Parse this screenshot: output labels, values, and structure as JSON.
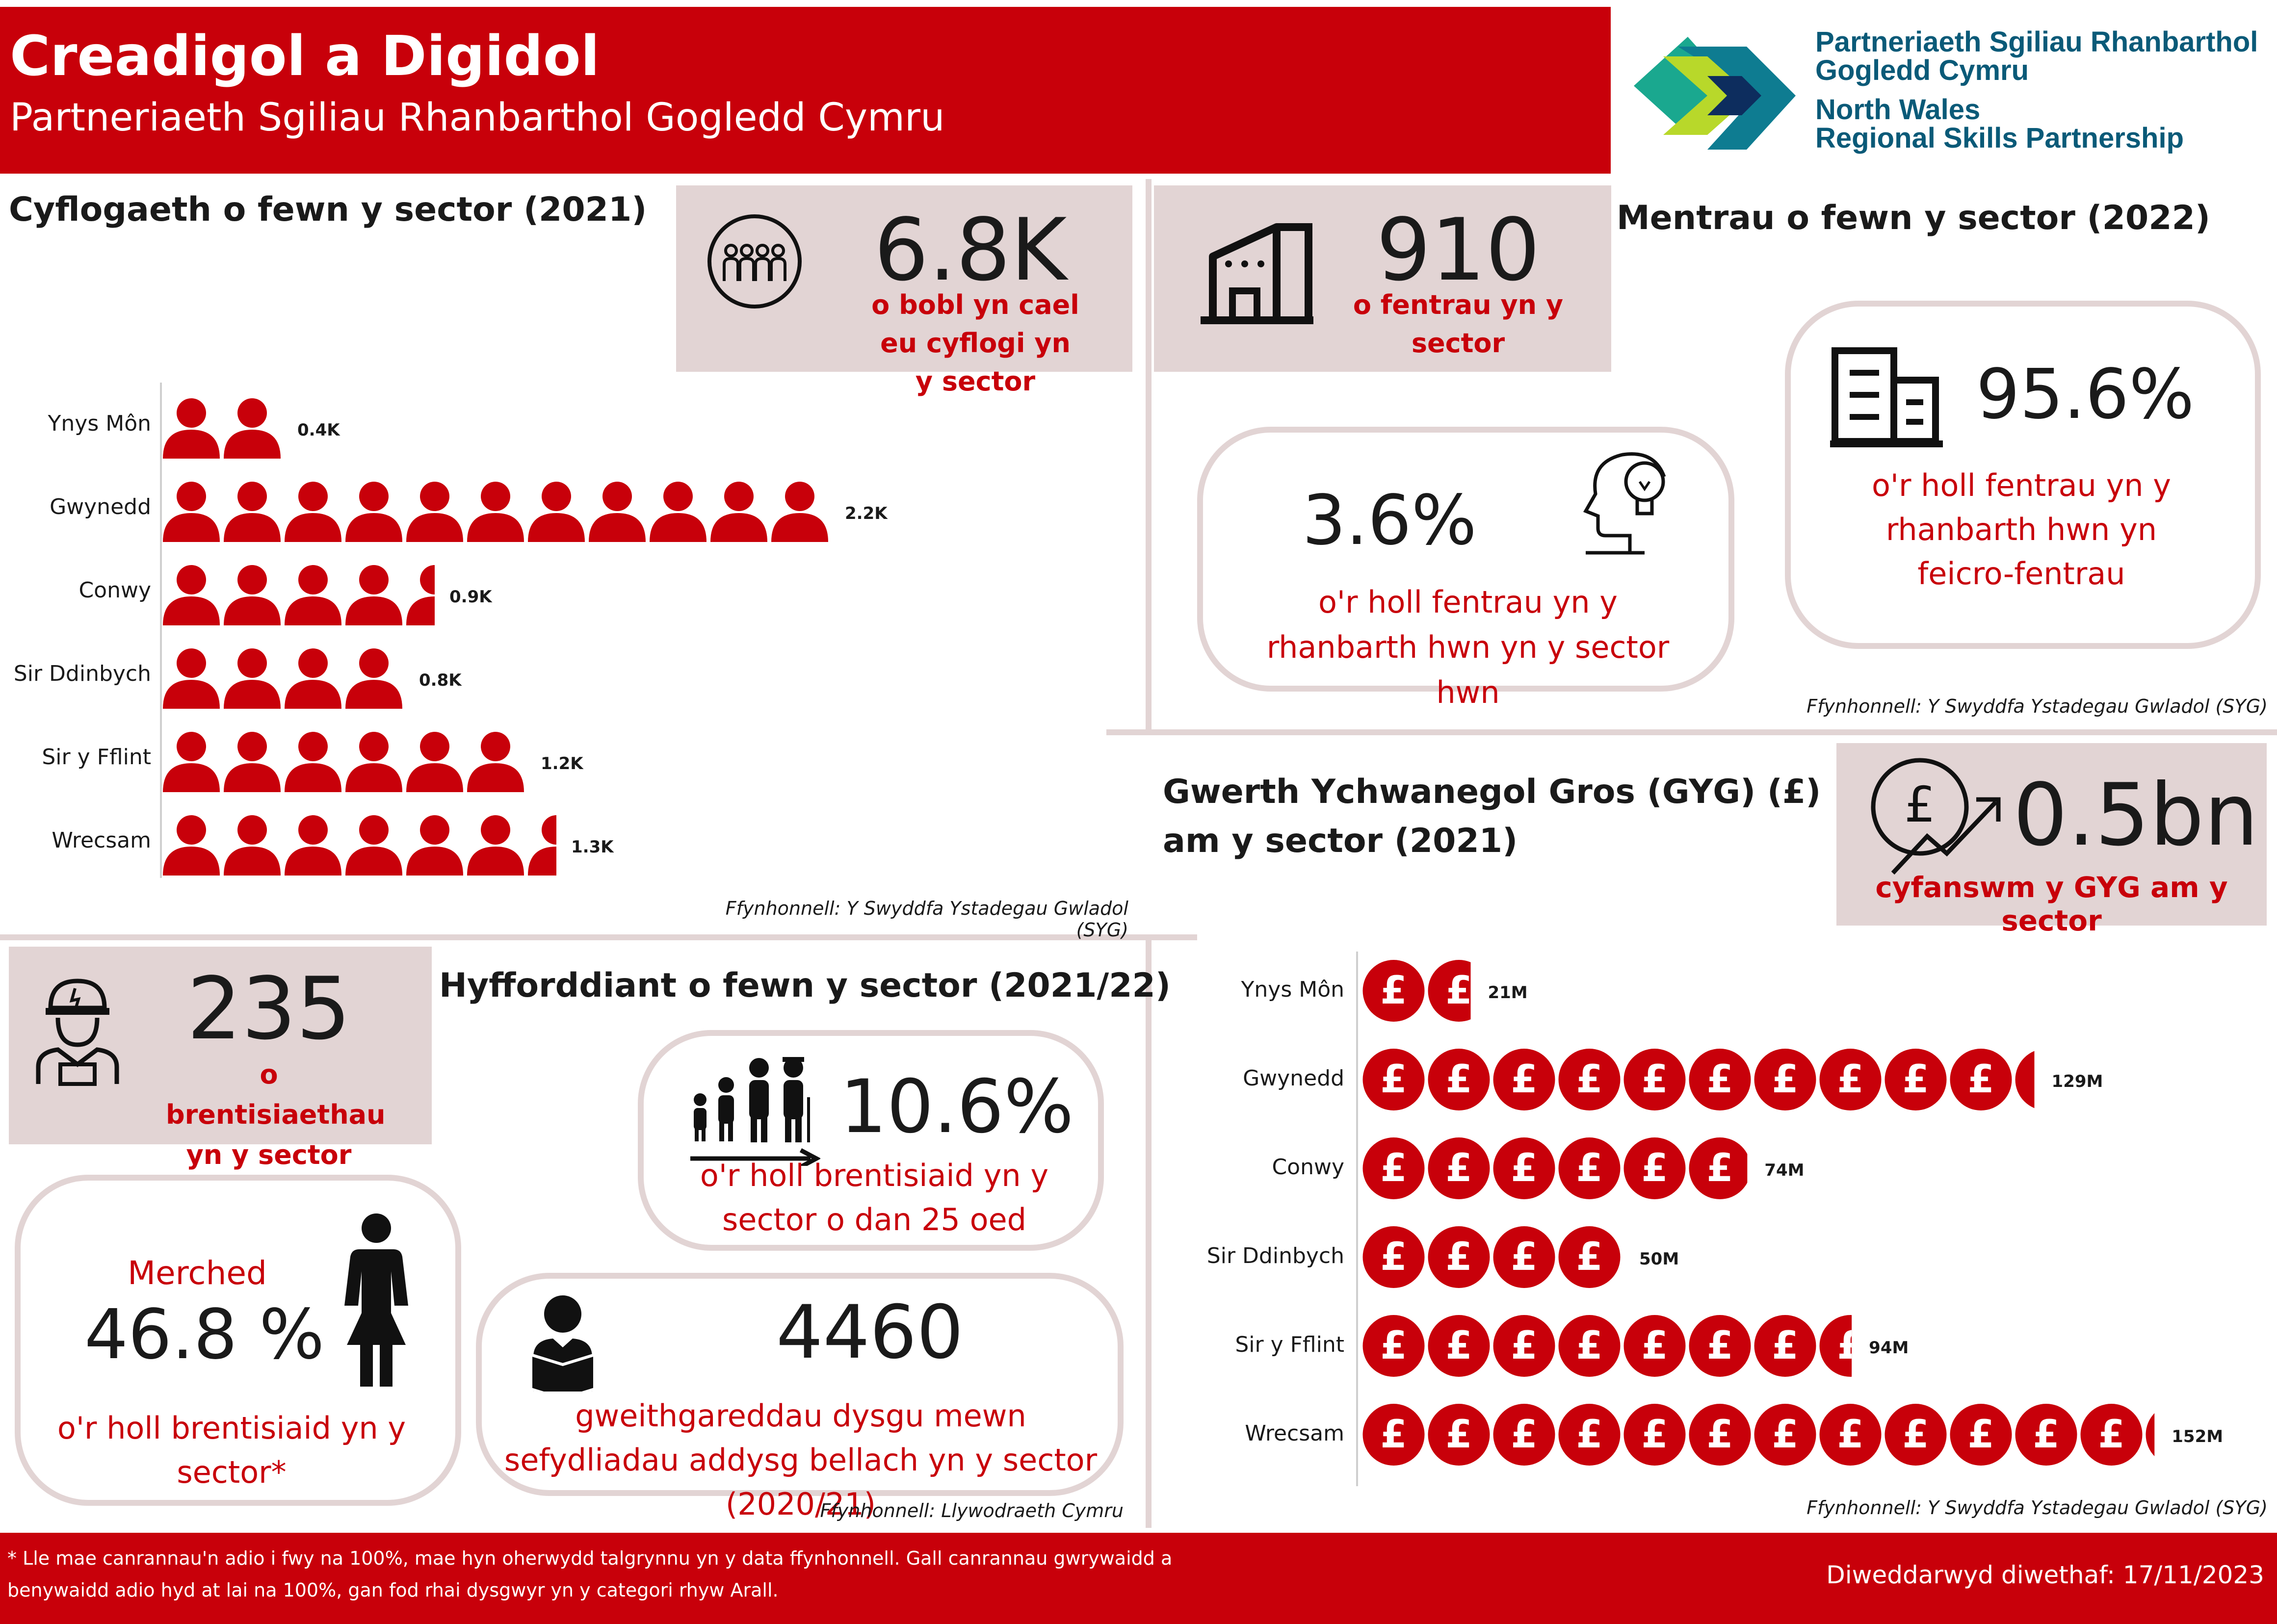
{
  "header": {
    "title": "Creadigol a Digidol",
    "subtitle": "Partneriaeth Sgiliau Rhanbarthol Gogledd Cymru"
  },
  "logo": {
    "line1": "Partneriaeth Sgiliau Rhanbarthol",
    "line2": "Gogledd Cymru",
    "line3": "North Wales",
    "line4": "Regional Skills Partnership"
  },
  "employment": {
    "heading": "Cyflogaeth o fewn y sector (2021)",
    "total_value": "6.8K",
    "total_desc": "o bobl yn cael eu cyflogi yn y sector",
    "source": "Ffynhonnell: Y Swyddfa Ystadegau Gwladol (SYG)"
  },
  "enterprises": {
    "heading": "Mentrau o fewn y sector (2022)",
    "total_value": "910",
    "total_desc": "o fentrau yn y sector",
    "share_value": "3.6%",
    "share_desc": "o'r holl fentrau yn y rhanbarth hwn yn y sector hwn",
    "micro_value": "95.6%",
    "micro_desc": "o'r holl fentrau yn y rhanbarth hwn yn feicro-fentrau",
    "source": "Ffynhonnell: Y Swyddfa Ystadegau Gwladol (SYG)"
  },
  "gva": {
    "heading_line1": "Gwerth Ychwanegol Gros (GYG) (£)",
    "heading_line2": "am y sector (2021)",
    "total_value": "0.5bn",
    "total_desc": "cyfanswm y GYG am y sector",
    "source": "Ffynhonnell: Y Swyddfa Ystadegau Gwladol (SYG)"
  },
  "training": {
    "heading": "Hyfforddiant o fewn y sector (2021/22)",
    "apprent_value": "235",
    "apprent_desc": "o brentisiaethau yn y sector",
    "under25_value": "10.6%",
    "under25_desc": "o'r holl brentisiaid yn y sector o dan 25 oed",
    "women_label": "Merched",
    "women_value": "46.8 %",
    "women_desc": "o'r holl brentisiaid yn y sector*",
    "fe_value": "4460",
    "fe_desc": "gweithgareddau dysgu mewn sefydliadau addysg bellach yn y sector (2020/21)",
    "source": "Ffynhonnell: Llywodraeth Cymru"
  },
  "footer": {
    "note_line1": "* Lle mae canrannau'n adio i fwy na 100%, mae hyn oherwydd talgrynnu yn y data ffynhonnell. Gall canrannau gwrywaidd a",
    "note_line2": "benywaidd adio hyd at lai na 100%, gan fod rhai dysgwyr yn y categori rhyw Arall.",
    "updated": "Diweddarwyd diwethaf: 17/11/2023"
  },
  "colors": {
    "accent": "#c8000a",
    "panel": "#e2d4d4"
  },
  "icons": [
    "people-group-icon",
    "factory-icon",
    "office-building-icon",
    "head-lightbulb-icon",
    "pound-growth-icon",
    "worker-icon",
    "family-icon",
    "woman-icon",
    "reader-icon",
    "person-icon",
    "pound-coin-icon"
  ],
  "chart_data": [
    {
      "type": "bar",
      "orientation": "horizontal",
      "unit": "people (thousands)",
      "categories": [
        "Ynys Môn",
        "Gwynedd",
        "Conwy",
        "Sir Ddinbych",
        "Sir y Fflint",
        "Wrecsam"
      ],
      "values": [
        0.4,
        2.2,
        0.9,
        0.8,
        1.2,
        1.3
      ],
      "labels": [
        "0.4K",
        "2.2K",
        "0.9K",
        "0.8K",
        "1.2K",
        "1.3K"
      ]
    },
    {
      "type": "bar",
      "orientation": "horizontal",
      "unit": "£ millions",
      "categories": [
        "Ynys Môn",
        "Gwynedd",
        "Conwy",
        "Sir Ddinbych",
        "Sir y Fflint",
        "Wrecsam"
      ],
      "values": [
        21,
        129,
        74,
        50,
        94,
        152
      ],
      "labels": [
        "21M",
        "129M",
        "74M",
        "50M",
        "94M",
        "152M"
      ]
    }
  ]
}
